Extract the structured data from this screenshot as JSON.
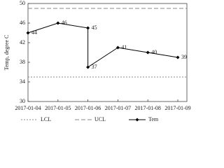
{
  "chart_data": {
    "type": "line",
    "y_label": "Temp, degree C",
    "x": [
      "2017-01-04",
      "2017-01-05",
      "2017-01-06",
      "2017-01-06",
      "2017-01-07",
      "2017-01-08",
      "2017-01-09"
    ],
    "series": [
      {
        "name": "Tem",
        "color": "#000000",
        "values": [
          44,
          46,
          45,
          37,
          41,
          40,
          39
        ]
      }
    ],
    "reference_lines": [
      {
        "name": "LCL",
        "value": 35,
        "color": "#888888",
        "style": "dotted"
      },
      {
        "name": "UCL",
        "value": 49,
        "color": "#888888",
        "style": "dashed"
      }
    ],
    "xlim": [
      "2017-01-04",
      "2017-01-09"
    ],
    "xticks": [
      "2017-01-04",
      "2017-01-05",
      "2017-01-06",
      "2017-01-07",
      "2017-01-08",
      "2017-01-09"
    ],
    "ylim": [
      30,
      50
    ],
    "yticks": [
      30,
      34,
      38,
      42,
      46,
      50
    ]
  }
}
